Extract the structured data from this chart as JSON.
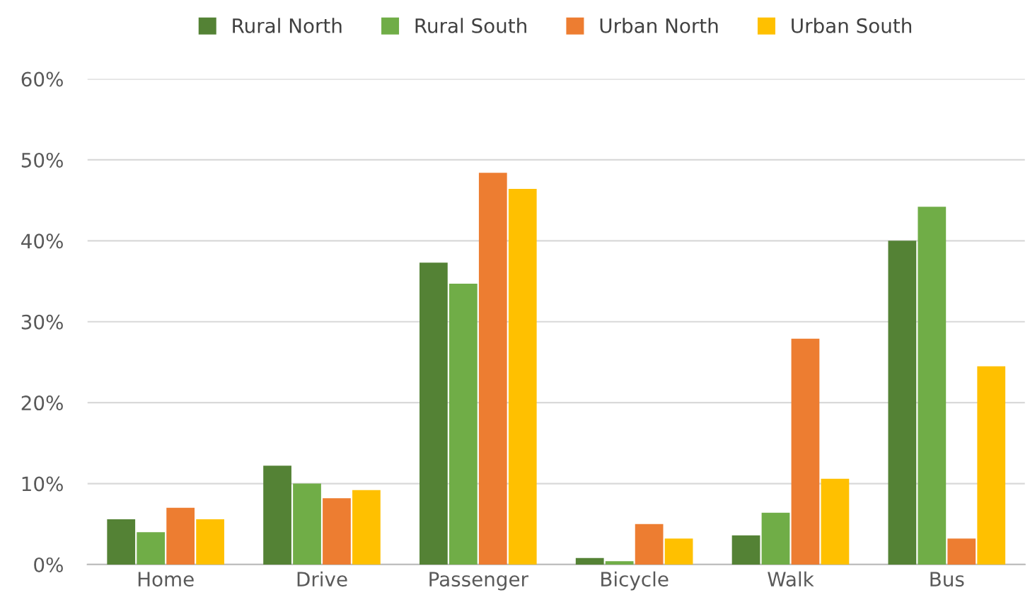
{
  "chart_data": {
    "type": "bar",
    "categories": [
      "Home",
      "Drive",
      "Passenger",
      "Bicycle",
      "Walk",
      "Bus"
    ],
    "series": [
      {
        "name": "Rural North",
        "color": "#548235",
        "values": [
          5.6,
          12.2,
          37.3,
          0.8,
          3.6,
          40.0
        ]
      },
      {
        "name": "Rural South",
        "color": "#70ad47",
        "values": [
          4.0,
          10.0,
          34.7,
          0.4,
          6.4,
          44.2
        ]
      },
      {
        "name": "Urban North",
        "color": "#ed7d31",
        "values": [
          7.0,
          8.2,
          48.4,
          5.0,
          27.9,
          3.2
        ]
      },
      {
        "name": "Urban South",
        "color": "#ffc000",
        "values": [
          5.6,
          9.2,
          46.4,
          3.2,
          10.6,
          24.5
        ]
      }
    ],
    "ylim": [
      0,
      60
    ],
    "yticks": [
      {
        "value": 0,
        "label": "0%"
      },
      {
        "value": 10,
        "label": "10%"
      },
      {
        "value": 20,
        "label": "20%"
      },
      {
        "value": 30,
        "label": "30%"
      },
      {
        "value": 40,
        "label": "40%"
      },
      {
        "value": 50,
        "label": "50%"
      },
      {
        "value": 60,
        "label": "60%"
      }
    ],
    "grid": "y",
    "legend": "top"
  }
}
